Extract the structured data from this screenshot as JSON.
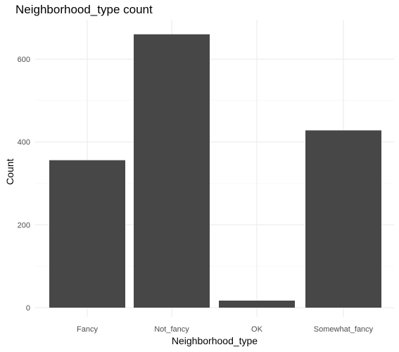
{
  "chart_data": {
    "type": "bar",
    "title": "Neighborhood_type count",
    "xlabel": "Neighborhood_type",
    "ylabel": "Count",
    "categories": [
      "Fancy",
      "Not_fancy",
      "OK",
      "Somewhat_fancy"
    ],
    "values": [
      356,
      660,
      17,
      428
    ],
    "ylim": [
      0,
      700
    ],
    "yticks": [
      0,
      200,
      400,
      600
    ],
    "grid": true,
    "legend": "none",
    "colors": {
      "bar": "#474747",
      "grid_major": "#ebebeb",
      "grid_minor": "#f3f3f3",
      "tick_text": "#4d4d4d"
    }
  }
}
